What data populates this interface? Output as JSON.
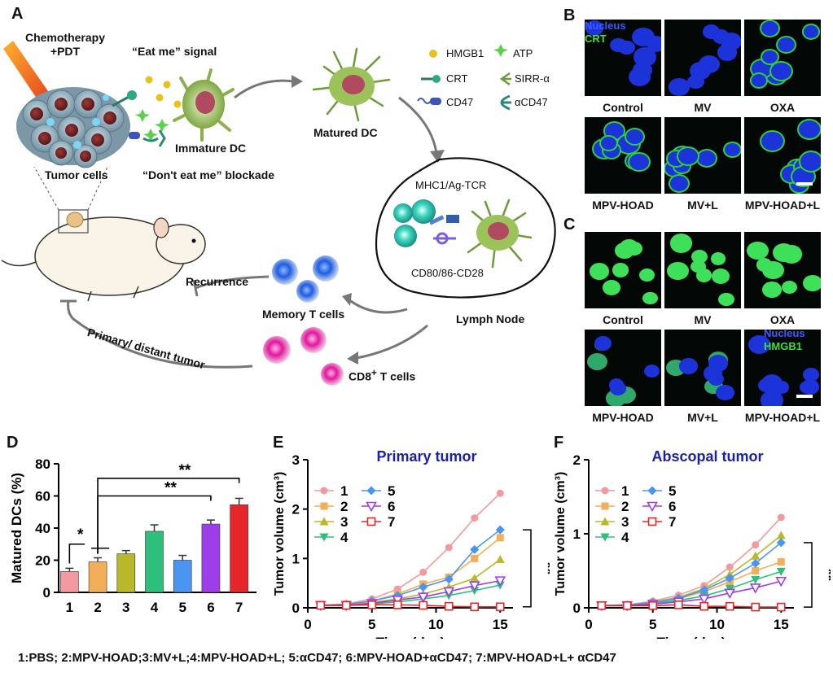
{
  "panel_labels": {
    "a": "A",
    "b": "B",
    "c": "C",
    "d": "D",
    "e": "E",
    "f": "F"
  },
  "schematic": {
    "chemo_pdt": [
      "Chemotherapy",
      "+PDT"
    ],
    "eat_me": "“Eat me” signal",
    "immature_dc": "Immature DC",
    "tumor_cells": "Tumor cells",
    "dont_eat_me": "“Don't eat me” blockade",
    "matured_dc": "Matured DC",
    "legend": [
      "HMGB1",
      "ATP",
      "CRT",
      "SIRR-α",
      "CD47",
      "αCD47"
    ],
    "mhc": "MHC1/Ag-TCR",
    "cd80": "CD80/86-CD28",
    "lymph_node": "Lymph Node",
    "recurrence": "Recurrence",
    "memory_t": "Memory T cells",
    "primary_distant": "Primary/ distant tumor",
    "cd8": "CD8",
    "cd8_sup": "+",
    "cd8_suffix": " T cells"
  },
  "panel_b": {
    "stain1": "Nucleus",
    "stain2": "CRT",
    "labels": [
      "Control",
      "MV",
      "OXA",
      "MPV-HOAD",
      "MV+L",
      "MPV-HOAD+L"
    ]
  },
  "panel_c": {
    "stain1": "Nucleus",
    "stain2": "HMGB1",
    "labels": [
      "Control",
      "MV",
      "OXA",
      "MPV-HOAD",
      "MV+L",
      "MPV-HOAD+L"
    ]
  },
  "footer": "1:PBS; 2:MPV-HOAD;3:MV+L;4:MPV-HOAD+L; 5:αCD47; 6:MPV-HOAD+αCD47;   7:MPV-HOAD+L+ αCD47",
  "colors": {
    "g1": "#f29aa0",
    "g2": "#f3ae5a",
    "g3": "#b9b82a",
    "g4": "#2ec07a",
    "g5": "#4a95f0",
    "g6": "#9e3ee8",
    "g7": "#e6262b",
    "title": "#1a22a8"
  },
  "chart_data": [
    {
      "type": "bar",
      "title": "",
      "xlabel": "",
      "ylabel": "Matured DCs (%)",
      "ylim": [
        0,
        80
      ],
      "yticks": [
        0,
        20,
        40,
        60,
        80
      ],
      "categories": [
        "1",
        "2",
        "3",
        "4",
        "5",
        "6",
        "7"
      ],
      "values": [
        13,
        19,
        24,
        38,
        20,
        42.5,
        54.5
      ],
      "errors": [
        2,
        2.5,
        2,
        4,
        3,
        2.5,
        4
      ],
      "significance": [
        {
          "from": "1",
          "to": "2",
          "label": "*"
        },
        {
          "from": "2",
          "to": "6",
          "label": "**"
        },
        {
          "from": "2",
          "to": "7",
          "label": "**"
        }
      ]
    },
    {
      "type": "line",
      "title": "Primary tumor",
      "xlabel": "Time (day)",
      "ylabel": "Tumor volume (cm³)",
      "ylim": [
        0,
        3
      ],
      "xlim": [
        0,
        16
      ],
      "xticks": [
        0,
        5,
        10,
        15
      ],
      "yticks": [
        0,
        1,
        2,
        3
      ],
      "x": [
        1,
        3,
        5,
        7,
        9,
        11,
        13,
        15
      ],
      "series": [
        {
          "name": "1",
          "values": [
            0.05,
            0.08,
            0.18,
            0.38,
            0.72,
            1.22,
            1.82,
            2.32
          ]
        },
        {
          "name": "2",
          "values": [
            0.05,
            0.07,
            0.14,
            0.28,
            0.48,
            0.62,
            1.0,
            1.42
          ]
        },
        {
          "name": "3",
          "values": [
            0.05,
            0.06,
            0.11,
            0.18,
            0.28,
            0.42,
            0.6,
            0.98
          ]
        },
        {
          "name": "4",
          "values": [
            0.05,
            0.05,
            0.08,
            0.12,
            0.18,
            0.25,
            0.35,
            0.46
          ]
        },
        {
          "name": "5",
          "values": [
            0.05,
            0.07,
            0.14,
            0.25,
            0.42,
            0.58,
            1.18,
            1.58
          ]
        },
        {
          "name": "6",
          "values": [
            0.05,
            0.05,
            0.09,
            0.16,
            0.22,
            0.33,
            0.45,
            0.55
          ]
        },
        {
          "name": "7",
          "values": [
            0.05,
            0.05,
            0.06,
            0.06,
            0.05,
            0.03,
            0.02,
            0.02
          ]
        }
      ],
      "significance": "**"
    },
    {
      "type": "line",
      "title": "Abscopal tumor",
      "xlabel": "Time (day)",
      "ylabel": "Tumor volume (cm³)",
      "ylim": [
        0,
        2
      ],
      "xlim": [
        0,
        16
      ],
      "xticks": [
        0,
        5,
        10,
        15
      ],
      "yticks": [
        0,
        1,
        2
      ],
      "x": [
        1,
        3,
        5,
        7,
        9,
        11,
        13,
        15
      ],
      "series": [
        {
          "name": "1",
          "values": [
            0.03,
            0.04,
            0.09,
            0.17,
            0.3,
            0.55,
            0.85,
            1.22
          ]
        },
        {
          "name": "2",
          "values": [
            0.03,
            0.04,
            0.07,
            0.12,
            0.22,
            0.35,
            0.5,
            0.62
          ]
        },
        {
          "name": "3",
          "values": [
            0.03,
            0.04,
            0.08,
            0.14,
            0.26,
            0.45,
            0.7,
            0.98
          ]
        },
        {
          "name": "4",
          "values": [
            0.03,
            0.03,
            0.06,
            0.1,
            0.16,
            0.26,
            0.38,
            0.49
          ]
        },
        {
          "name": "5",
          "values": [
            0.03,
            0.04,
            0.07,
            0.13,
            0.24,
            0.4,
            0.6,
            0.88
          ]
        },
        {
          "name": "6",
          "values": [
            0.03,
            0.03,
            0.05,
            0.08,
            0.12,
            0.2,
            0.27,
            0.36
          ]
        },
        {
          "name": "7",
          "values": [
            0.03,
            0.03,
            0.03,
            0.04,
            0.02,
            0.02,
            0.01,
            0.01
          ]
        }
      ],
      "significance": "**"
    }
  ]
}
